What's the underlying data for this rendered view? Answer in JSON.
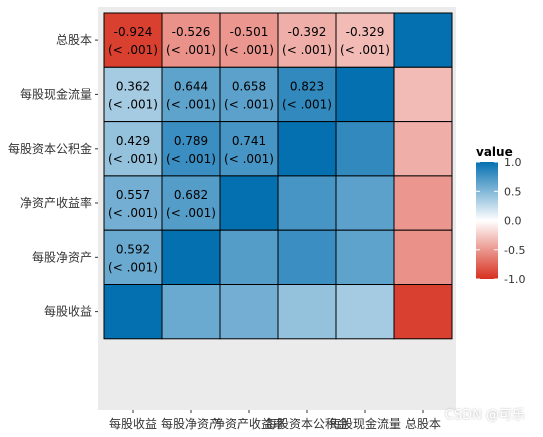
{
  "chart_data": {
    "type": "heatmap",
    "variables": [
      "每股收益",
      "每股净资产",
      "净资产收益率",
      "每股资本公积金",
      "每股现金流量",
      "总股本"
    ],
    "matrix": [
      [
        1.0,
        0.592,
        0.557,
        0.429,
        0.362,
        -0.924
      ],
      [
        0.592,
        1.0,
        0.682,
        0.789,
        0.644,
        -0.526
      ],
      [
        0.557,
        0.682,
        1.0,
        0.741,
        0.658,
        -0.501
      ],
      [
        0.429,
        0.789,
        0.741,
        1.0,
        0.823,
        -0.392
      ],
      [
        0.362,
        0.644,
        0.658,
        0.823,
        1.0,
        -0.329
      ],
      [
        -0.924,
        -0.526,
        -0.501,
        -0.392,
        -0.329,
        1.0
      ]
    ],
    "cell_labels": [
      {
        "row": 0,
        "col": 0,
        "value": "-0.924",
        "p": "(< .001)"
      },
      {
        "row": 0,
        "col": 1,
        "value": "-0.526",
        "p": "(< .001)"
      },
      {
        "row": 0,
        "col": 2,
        "value": "-0.501",
        "p": "(< .001)"
      },
      {
        "row": 0,
        "col": 3,
        "value": "-0.392",
        "p": "(< .001)"
      },
      {
        "row": 0,
        "col": 4,
        "value": "-0.329",
        "p": "(< .001)"
      },
      {
        "row": 1,
        "col": 0,
        "value": "0.362",
        "p": "(< .001)"
      },
      {
        "row": 1,
        "col": 1,
        "value": "0.644",
        "p": "(< .001)"
      },
      {
        "row": 1,
        "col": 2,
        "value": "0.658",
        "p": "(< .001)"
      },
      {
        "row": 1,
        "col": 3,
        "value": "0.823",
        "p": "(< .001)"
      },
      {
        "row": 2,
        "col": 0,
        "value": "0.429",
        "p": "(< .001)"
      },
      {
        "row": 2,
        "col": 1,
        "value": "0.789",
        "p": "(< .001)"
      },
      {
        "row": 2,
        "col": 2,
        "value": "0.741",
        "p": "(< .001)"
      },
      {
        "row": 3,
        "col": 0,
        "value": "0.557",
        "p": "(< .001)"
      },
      {
        "row": 3,
        "col": 1,
        "value": "0.682",
        "p": "(< .001)"
      },
      {
        "row": 4,
        "col": 0,
        "value": "0.592",
        "p": "(< .001)"
      }
    ],
    "legend": {
      "title": "value",
      "ticks": [
        "1.0",
        "0.5",
        "0.0",
        "-0.5",
        "-1.0"
      ],
      "tick_values": [
        1.0,
        0.5,
        0.0,
        -0.5,
        -1.0
      ],
      "range": [
        -1,
        1
      ],
      "placement": "right"
    },
    "colors": {
      "low": "#D7301F",
      "mid": "#FFFFFF",
      "high": "#0570B0",
      "panel_bg": "#EBEBEB",
      "cell_border": "#000000",
      "text": "#000000",
      "axis_text": "#333333"
    },
    "xlabel": "",
    "ylabel": ""
  },
  "watermark": "CSDN @可乐"
}
